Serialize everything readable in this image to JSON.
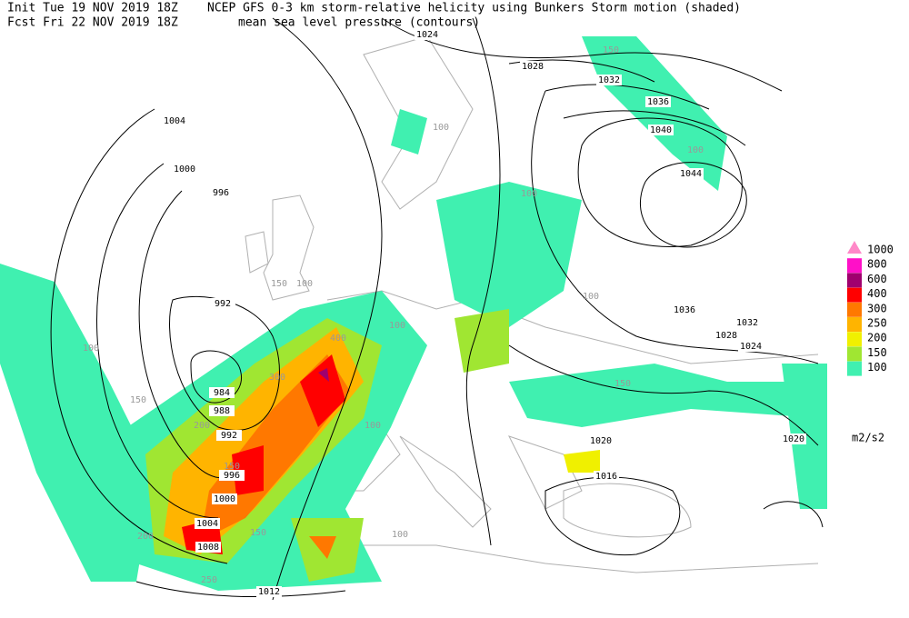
{
  "header": {
    "init": "Init  Tue 19 NOV 2019 18Z",
    "fcst": "Fcst Fri 22 NOV 2019 18Z",
    "title": "NCEP GFS 0-3 km storm-relative helicity using Bunkers Storm motion (shaded)",
    "subtitle": "mean sea level pressure (contours)"
  },
  "legend": {
    "unit": "m2/s2",
    "items": [
      {
        "label": 1000,
        "color": "#ff88c8"
      },
      {
        "label": 800,
        "color": "#ff10c8"
      },
      {
        "label": 600,
        "color": "#a0006e"
      },
      {
        "label": 400,
        "color": "#ff0000"
      },
      {
        "label": 300,
        "color": "#ff7800"
      },
      {
        "label": 250,
        "color": "#ffb400"
      },
      {
        "label": 200,
        "color": "#f0f000"
      },
      {
        "label": 150,
        "color": "#a0e632"
      },
      {
        "label": 100,
        "color": "#40f0b0"
      }
    ]
  },
  "isobar_labels": [
    1024,
    1028,
    1032,
    1036,
    1040,
    1044,
    1004,
    1000,
    996,
    992,
    984,
    988,
    992,
    996,
    1000,
    1004,
    1008,
    1012,
    1016,
    1020,
    1020,
    1024,
    1028,
    1032,
    1036
  ],
  "shade_labels": [
    150,
    100,
    100,
    150,
    100,
    100,
    150,
    400,
    300,
    200,
    150,
    250,
    100,
    150,
    200,
    100,
    100,
    150,
    100,
    100
  ]
}
